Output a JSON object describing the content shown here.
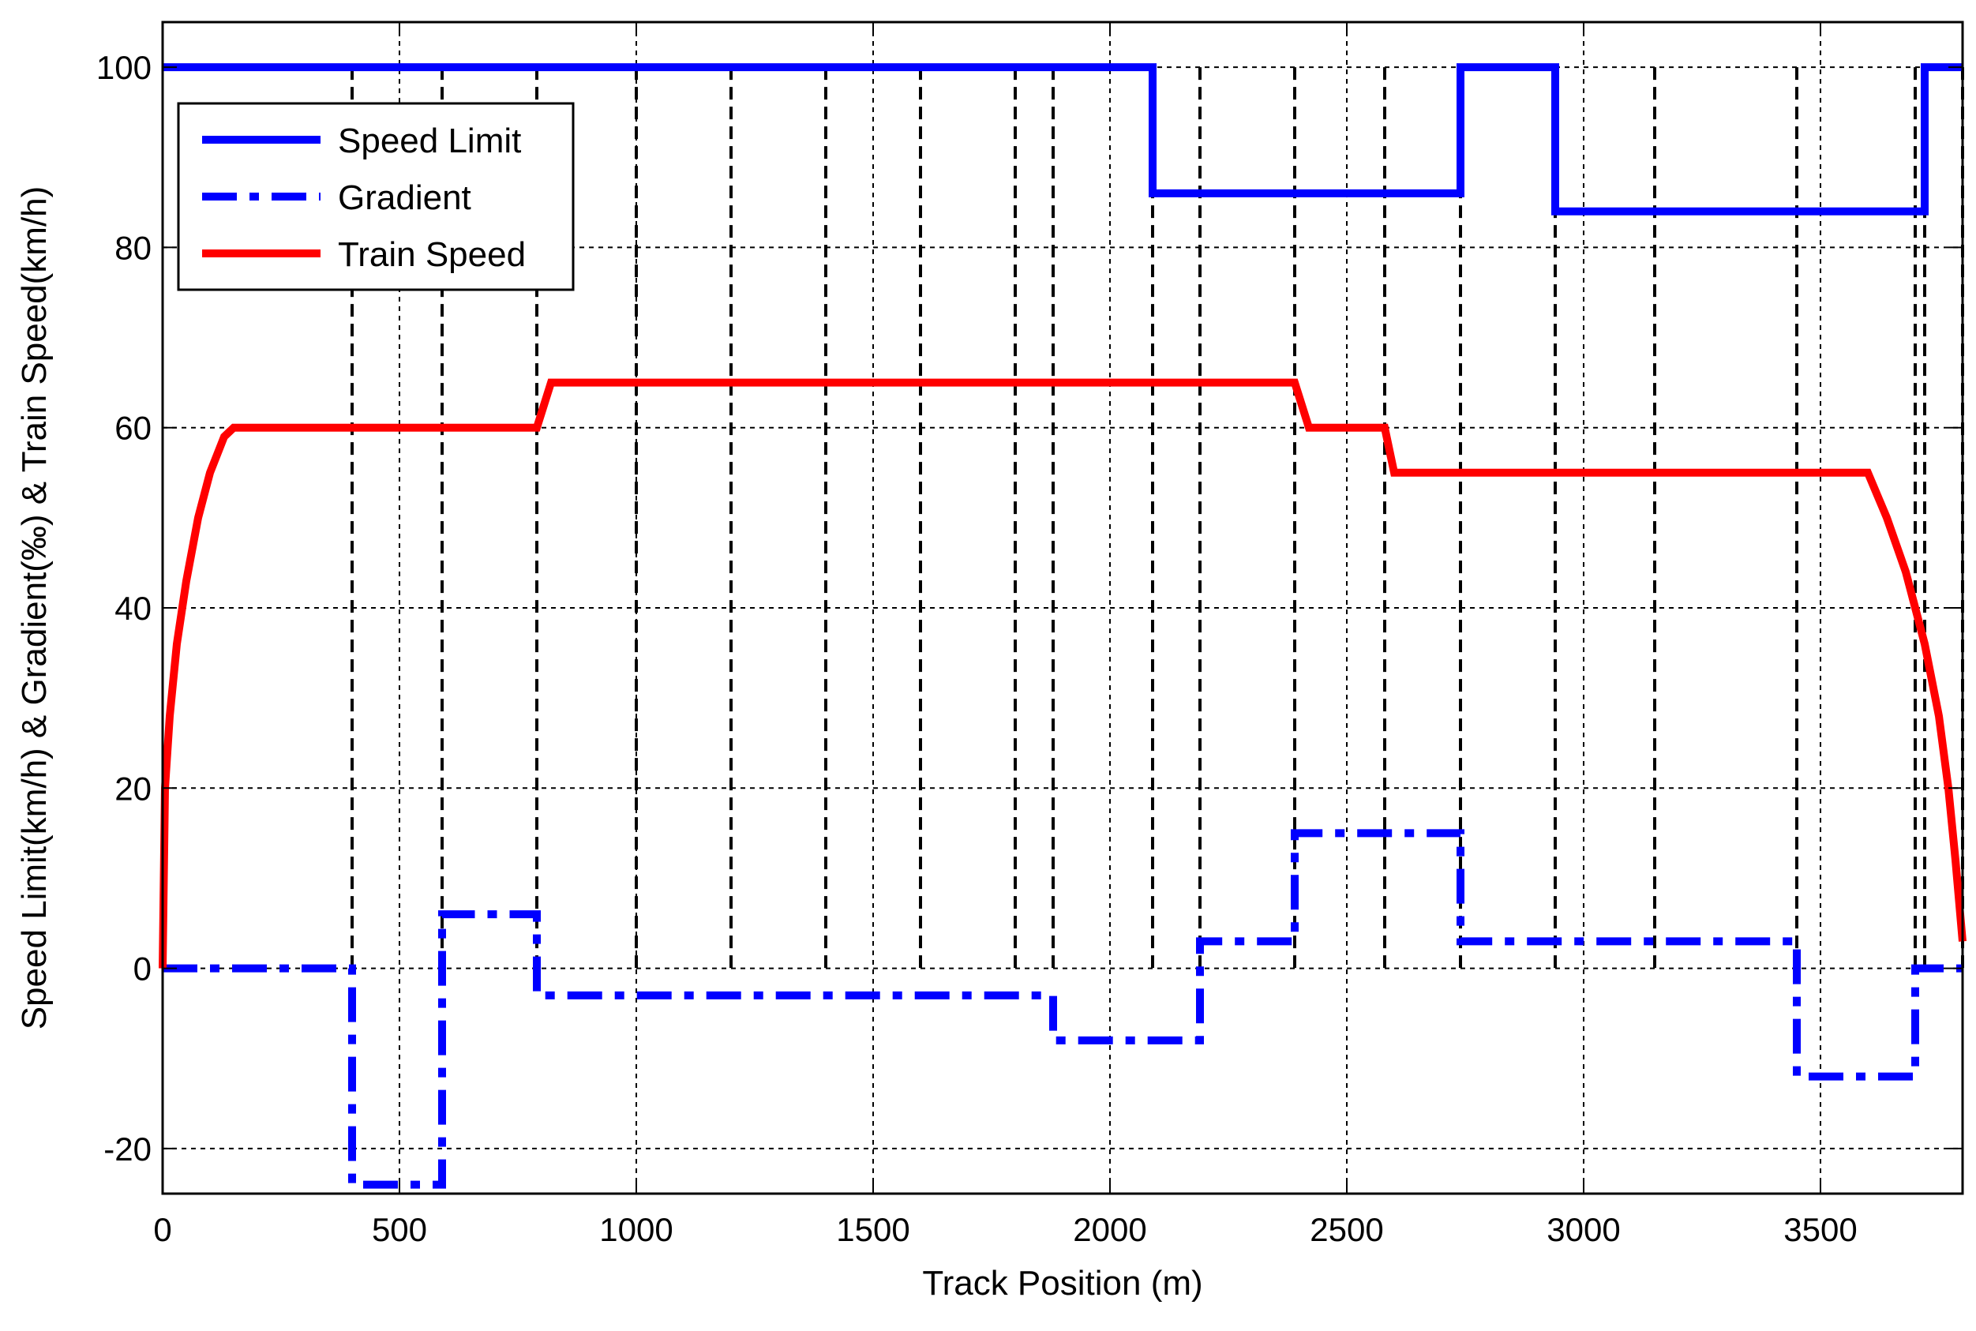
{
  "chart_data": {
    "type": "line",
    "title": "",
    "xlabel": "Track Position (m)",
    "ylabel": "Speed Limit(km/h) & Gradient(‰) & Train Speed(km/h)",
    "xlim": [
      0,
      3800
    ],
    "ylim": [
      -25,
      105
    ],
    "x_ticks": [
      0,
      500,
      1000,
      1500,
      2000,
      2500,
      3000,
      3500
    ],
    "y_ticks": [
      -20,
      0,
      20,
      40,
      60,
      80,
      100
    ],
    "grid": true,
    "legend_position": "top-left",
    "section_lines_x": [
      400,
      590,
      790,
      1000,
      1200,
      1400,
      1600,
      1800,
      1880,
      2090,
      2190,
      2390,
      2580,
      2740,
      2940,
      3150,
      3450,
      3700,
      3720,
      3800
    ],
    "series": [
      {
        "name": "Speed Limit",
        "color": "#0000ff",
        "style": "solid",
        "x": [
          0,
          2090,
          2090,
          2740,
          2740,
          2940,
          2940,
          3720,
          3720,
          3800
        ],
        "y": [
          100,
          100,
          86,
          86,
          100,
          100,
          84,
          84,
          100,
          100
        ]
      },
      {
        "name": "Gradient",
        "color": "#0000ff",
        "style": "dashdot",
        "x": [
          0,
          400,
          400,
          590,
          590,
          790,
          790,
          1880,
          1880,
          2190,
          2190,
          2390,
          2390,
          2740,
          2740,
          3450,
          3450,
          3700,
          3700,
          3800
        ],
        "y": [
          0,
          0,
          -24,
          -24,
          6,
          6,
          -3,
          -3,
          -8,
          -8,
          3,
          3,
          15,
          15,
          3,
          3,
          -12,
          -12,
          0,
          0
        ]
      },
      {
        "name": "Train Speed",
        "color": "#ff0000",
        "style": "solid",
        "x": [
          0,
          5,
          15,
          30,
          50,
          75,
          100,
          130,
          150,
          790,
          820,
          2390,
          2420,
          2580,
          2600,
          3600,
          3640,
          3680,
          3720,
          3750,
          3770,
          3785,
          3800
        ],
        "y": [
          0,
          20,
          28,
          36,
          43,
          50,
          55,
          59,
          60,
          60,
          65,
          65,
          60,
          60,
          55,
          55,
          50,
          44,
          36,
          28,
          20,
          12,
          3
        ]
      }
    ]
  }
}
